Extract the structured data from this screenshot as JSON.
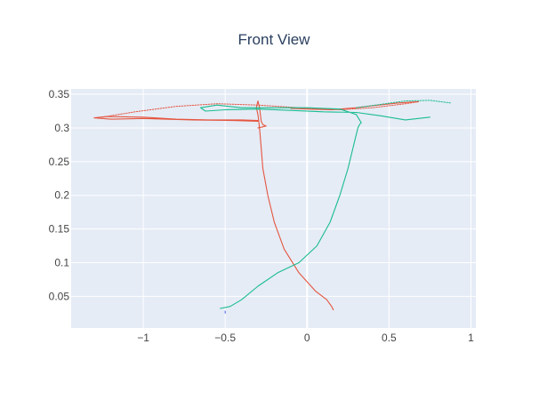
{
  "chart_data": {
    "type": "line",
    "title": "Front View",
    "xlabel": "",
    "ylabel": "",
    "xlim": [
      -1.44,
      1.03
    ],
    "ylim": [
      0.003,
      0.358
    ],
    "x_ticks": [
      -1,
      -0.5,
      0,
      0.5,
      1
    ],
    "x_tick_labels": [
      "−1",
      "−0.5",
      "0",
      "0.5",
      "1"
    ],
    "y_ticks": [
      0.05,
      0.1,
      0.15,
      0.2,
      0.25,
      0.3,
      0.35
    ],
    "y_tick_labels": [
      "0.05",
      "0.1",
      "0.15",
      "0.2",
      "0.25",
      "0.3",
      "0.35"
    ],
    "grid": true,
    "legend": "none",
    "colors": {
      "plot_bg": "#e5ecf6",
      "grid": "#ffffff",
      "red": "#e5553f",
      "green": "#1abc8f",
      "blue": "#5b6cf0"
    },
    "series": [
      {
        "color": "red",
        "style": "solid",
        "x": [
          0.16,
          0.15,
          0.12,
          0.05,
          -0.05,
          -0.14,
          -0.2,
          -0.24,
          -0.27,
          -0.28,
          -0.29,
          -0.3,
          -0.31,
          -0.3,
          -0.29,
          -0.28,
          -0.27,
          -0.25,
          -0.28,
          -0.3
        ],
        "y": [
          0.03,
          0.035,
          0.045,
          0.058,
          0.085,
          0.12,
          0.16,
          0.2,
          0.24,
          0.27,
          0.3,
          0.32,
          0.33,
          0.34,
          0.33,
          0.31,
          0.305,
          0.303,
          0.301,
          0.3
        ]
      },
      {
        "color": "red",
        "style": "solid",
        "x": [
          -0.3,
          -0.45,
          -0.7,
          -1.0,
          -1.2,
          -1.3,
          -1.22,
          -1.0,
          -0.8,
          -0.6,
          -0.4,
          -0.3
        ],
        "y": [
          0.31,
          0.311,
          0.312,
          0.314,
          0.313,
          0.315,
          0.317,
          0.316,
          0.313,
          0.312,
          0.312,
          0.311
        ]
      },
      {
        "color": "red",
        "style": "dotted",
        "x": [
          -1.25,
          -1.05,
          -0.8,
          -0.55,
          -0.3,
          -0.05,
          0.2,
          0.4,
          0.6,
          0.68
        ],
        "y": [
          0.316,
          0.324,
          0.332,
          0.336,
          0.334,
          0.33,
          0.327,
          0.33,
          0.336,
          0.339
        ]
      },
      {
        "color": "red",
        "style": "solid",
        "x": [
          0.68,
          0.55,
          0.4,
          0.3,
          0.15,
          0.0,
          -0.1
        ],
        "y": [
          0.339,
          0.337,
          0.333,
          0.33,
          0.327,
          0.328,
          0.329
        ]
      },
      {
        "color": "green",
        "style": "solid",
        "x": [
          -0.53,
          -0.47,
          -0.4,
          -0.3,
          -0.18,
          -0.05,
          0.06,
          0.14,
          0.2,
          0.25,
          0.28,
          0.3,
          0.31,
          0.32,
          0.33
        ],
        "y": [
          0.032,
          0.035,
          0.045,
          0.065,
          0.085,
          0.1,
          0.125,
          0.16,
          0.2,
          0.24,
          0.27,
          0.29,
          0.3,
          0.305,
          0.308
        ]
      },
      {
        "color": "green",
        "style": "solid",
        "x": [
          0.33,
          0.3,
          0.2,
          0.0,
          -0.2,
          -0.4,
          -0.55,
          -0.65,
          -0.62,
          -0.5,
          -0.3,
          -0.1,
          0.1,
          0.3,
          0.45,
          0.6,
          0.75
        ],
        "y": [
          0.308,
          0.32,
          0.328,
          0.33,
          0.33,
          0.33,
          0.334,
          0.33,
          0.325,
          0.327,
          0.328,
          0.326,
          0.324,
          0.323,
          0.318,
          0.312,
          0.316
        ]
      },
      {
        "color": "green",
        "style": "dotted",
        "x": [
          0.3,
          0.45,
          0.6,
          0.75,
          0.88
        ],
        "y": [
          0.33,
          0.335,
          0.34,
          0.341,
          0.337
        ]
      },
      {
        "color": "blue",
        "style": "solid",
        "x": [
          -0.5,
          -0.5
        ],
        "y": [
          0.025,
          0.028
        ]
      }
    ]
  }
}
